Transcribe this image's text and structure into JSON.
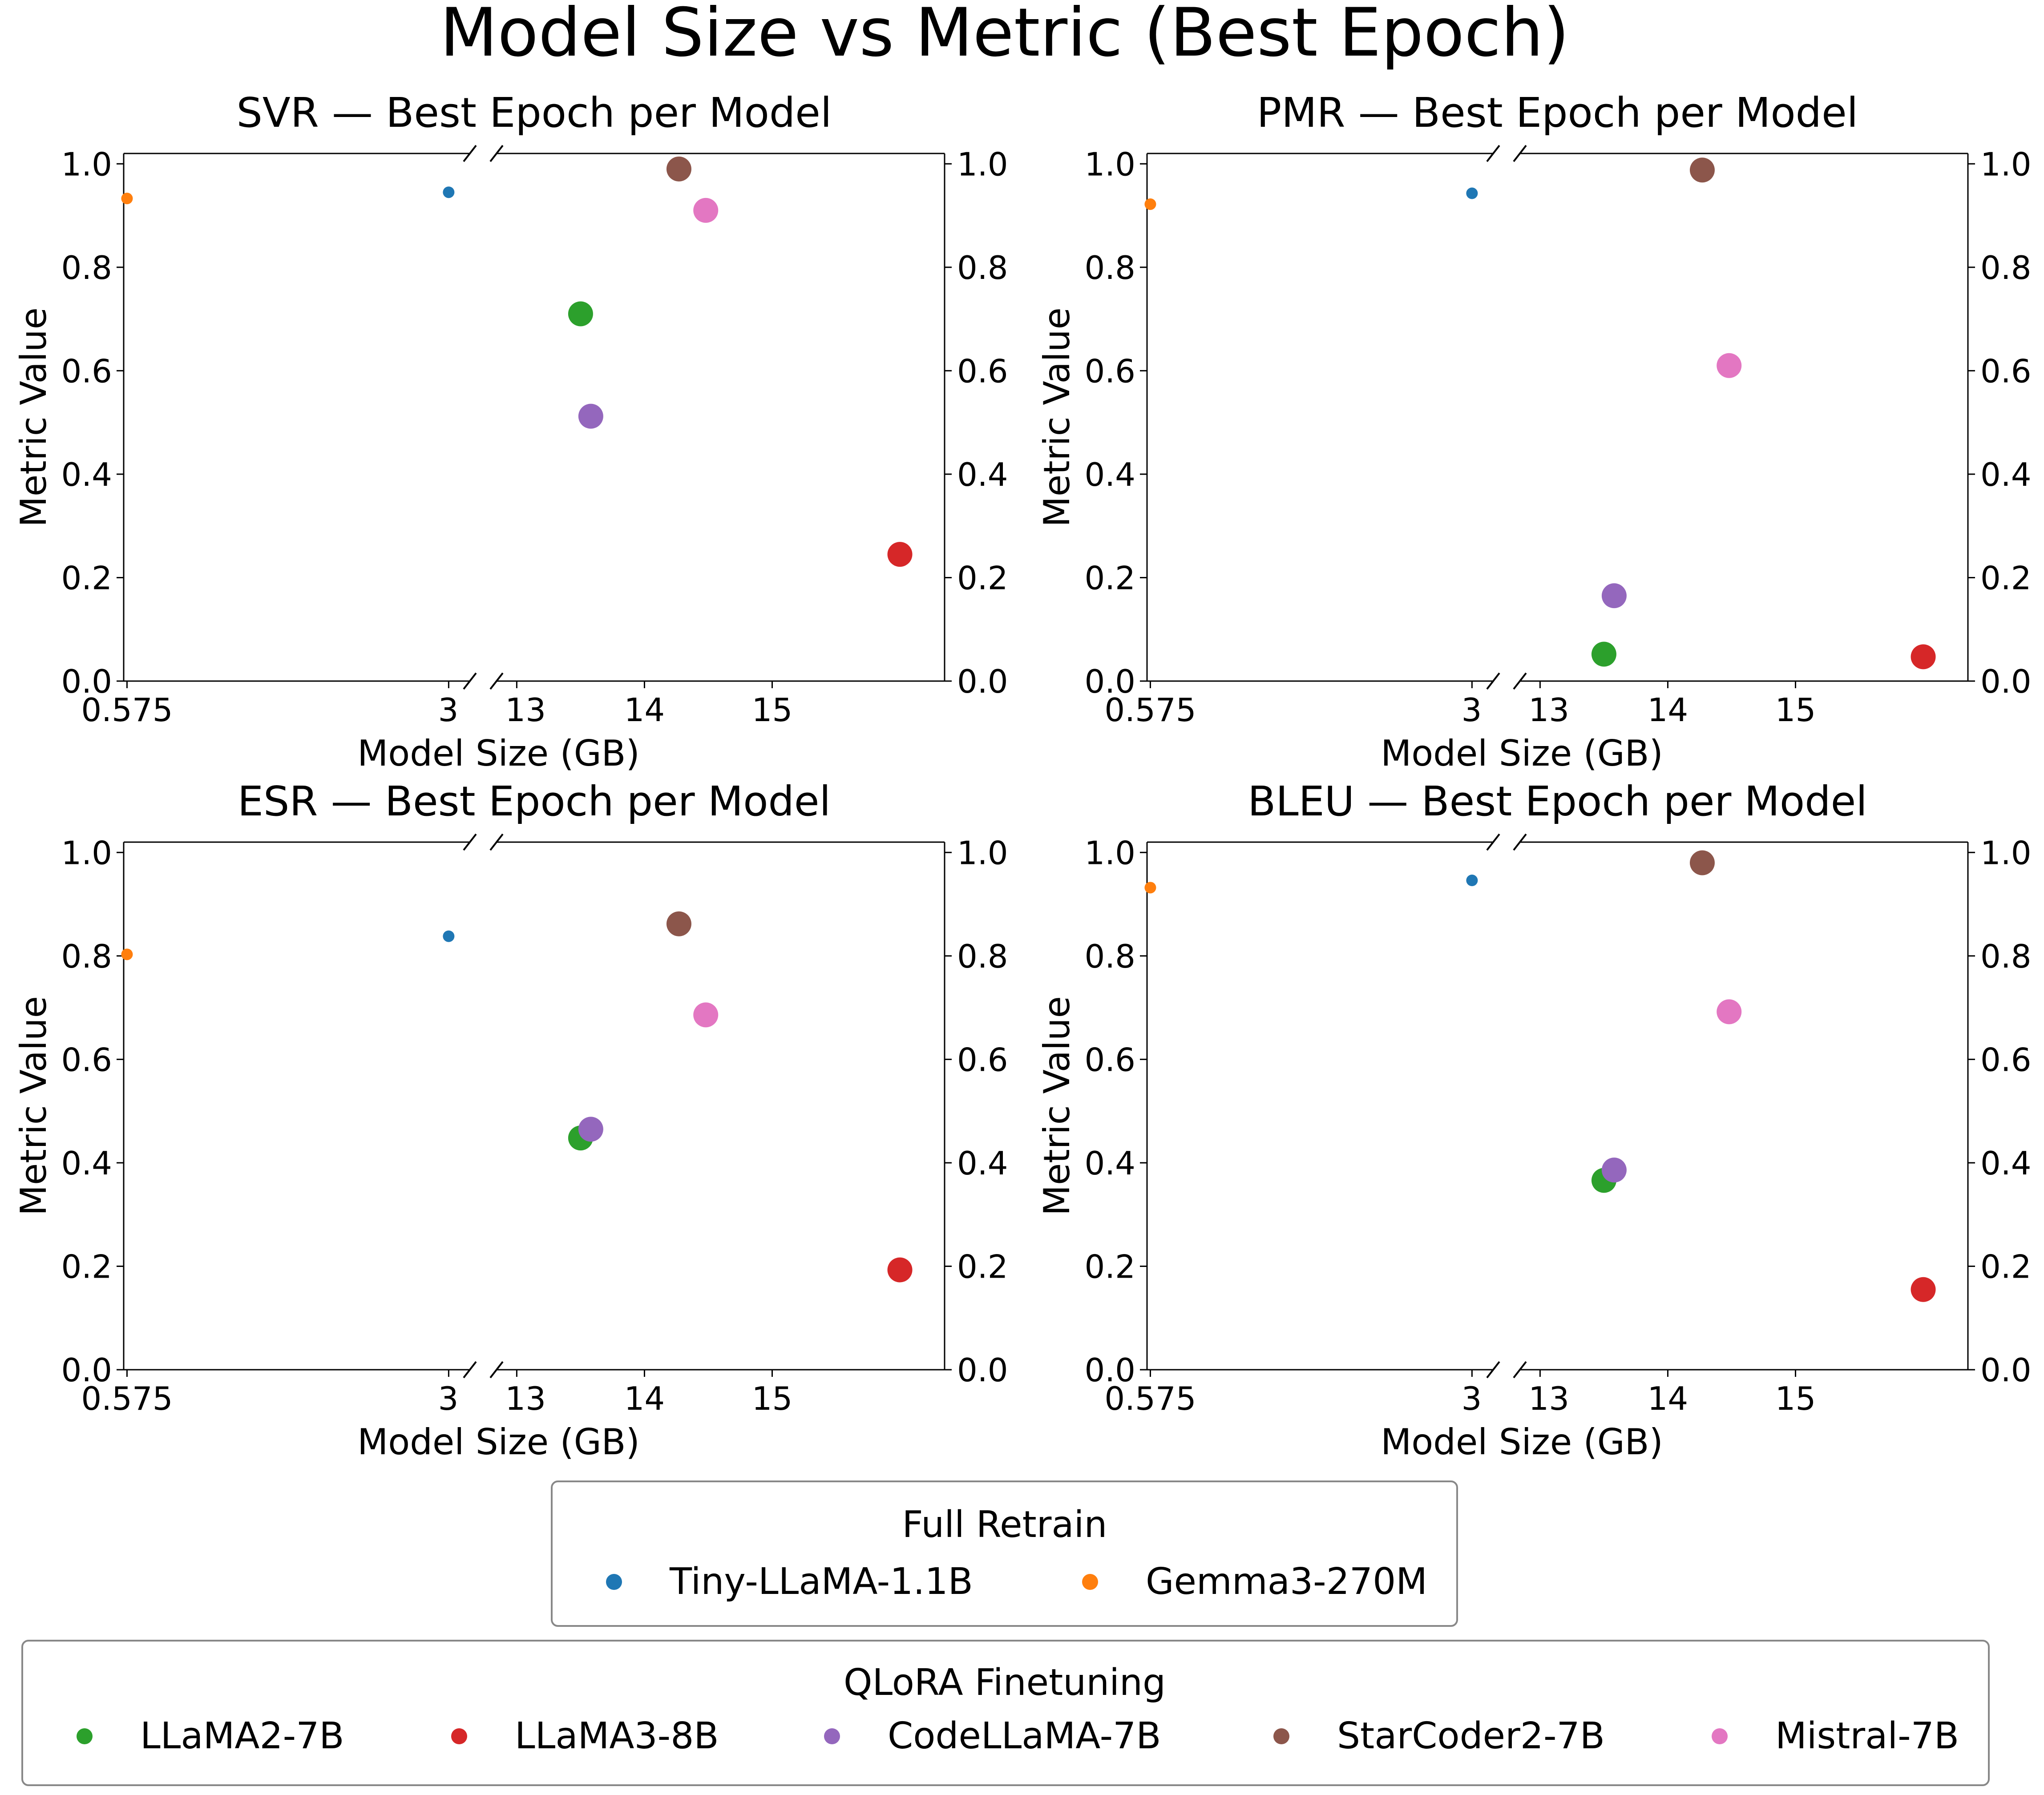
{
  "title": "Model Size vs Metric (Best Epoch)",
  "chart_data": {
    "type": "scatter",
    "x_axis": {
      "label": "Model Size (GB)",
      "left_segment": {
        "range": [
          0.55,
          3.2
        ],
        "ticks": [
          0.575,
          3
        ]
      },
      "right_segment": {
        "range": [
          12.8,
          16.35
        ],
        "ticks": [
          13,
          14,
          15
        ]
      }
    },
    "y_axis": {
      "label": "Metric Value",
      "range": [
        0,
        1.02
      ],
      "ticks": [
        0.0,
        0.2,
        0.4,
        0.6,
        0.8,
        1.0
      ]
    },
    "models": [
      {
        "name": "Tiny-LLaMA-1.1B",
        "group": "Full Retrain",
        "size_gb": 3,
        "color": "#1f77b4",
        "marker": "small"
      },
      {
        "name": "Gemma3-270M",
        "group": "Full Retrain",
        "size_gb": 0.575,
        "color": "#ff7f0e",
        "marker": "small"
      },
      {
        "name": "LLaMA2-7B",
        "group": "QLoRA Finetuning",
        "size_gb": 13.5,
        "color": "#2ca02c",
        "marker": "large"
      },
      {
        "name": "LLaMA3-8B",
        "group": "QLoRA Finetuning",
        "size_gb": 16.0,
        "color": "#d62728",
        "marker": "large"
      },
      {
        "name": "CodeLLaMA-7B",
        "group": "QLoRA Finetuning",
        "size_gb": 13.58,
        "color": "#9467bd",
        "marker": "large"
      },
      {
        "name": "StarCoder2-7B",
        "group": "QLoRA Finetuning",
        "size_gb": 14.27,
        "color": "#8c564b",
        "marker": "large"
      },
      {
        "name": "Mistral-7B",
        "group": "QLoRA Finetuning",
        "size_gb": 14.48,
        "color": "#e377c2",
        "marker": "large"
      }
    ],
    "panels": [
      {
        "metric": "SVR",
        "title": "SVR — Best Epoch per Model",
        "values": {
          "Tiny-LLaMA-1.1B": 0.945,
          "Gemma3-270M": 0.933,
          "LLaMA2-7B": 0.71,
          "LLaMA3-8B": 0.245,
          "CodeLLaMA-7B": 0.512,
          "StarCoder2-7B": 0.99,
          "Mistral-7B": 0.91
        }
      },
      {
        "metric": "PMR",
        "title": "PMR — Best Epoch per Model",
        "values": {
          "Tiny-LLaMA-1.1B": 0.943,
          "Gemma3-270M": 0.922,
          "LLaMA2-7B": 0.052,
          "LLaMA3-8B": 0.047,
          "CodeLLaMA-7B": 0.165,
          "StarCoder2-7B": 0.988,
          "Mistral-7B": 0.61
        }
      },
      {
        "metric": "ESR",
        "title": "ESR — Best Epoch per Model",
        "values": {
          "Tiny-LLaMA-1.1B": 0.838,
          "Gemma3-270M": 0.803,
          "LLaMA2-7B": 0.448,
          "LLaMA3-8B": 0.193,
          "CodeLLaMA-7B": 0.465,
          "StarCoder2-7B": 0.862,
          "Mistral-7B": 0.686
        }
      },
      {
        "metric": "BLEU",
        "title": "BLEU — Best Epoch per Model",
        "values": {
          "Tiny-LLaMA-1.1B": 0.946,
          "Gemma3-270M": 0.932,
          "LLaMA2-7B": 0.366,
          "LLaMA3-8B": 0.155,
          "CodeLLaMA-7B": 0.386,
          "StarCoder2-7B": 0.98,
          "Mistral-7B": 0.692
        }
      }
    ],
    "legends": [
      {
        "title": "Full Retrain",
        "entries": [
          "Tiny-LLaMA-1.1B",
          "Gemma3-270M"
        ]
      },
      {
        "title": "QLoRA Finetuning",
        "entries": [
          "LLaMA2-7B",
          "LLaMA3-8B",
          "CodeLLaMA-7B",
          "StarCoder2-7B",
          "Mistral-7B"
        ]
      }
    ]
  }
}
